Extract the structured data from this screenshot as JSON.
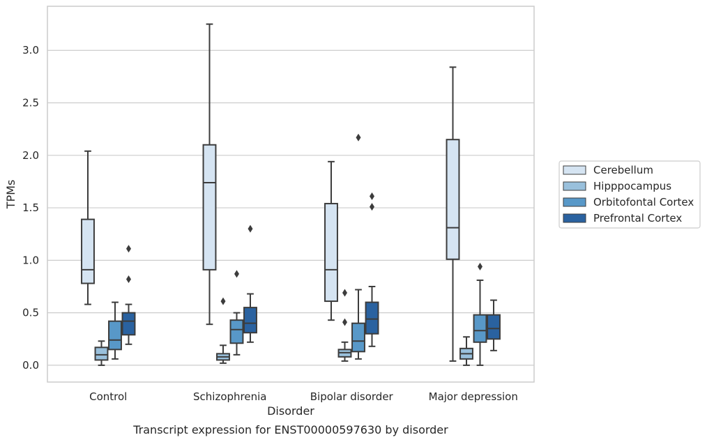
{
  "chart_data": {
    "type": "boxplot",
    "caption": "Transcript expression for ENST00000597630 by disorder",
    "xlabel": "Disorder",
    "ylabel": "TPMs",
    "categories": [
      "Control",
      "Schizophrenia",
      "Bipolar disorder",
      "Major depression"
    ],
    "y_ticks": [
      "0.0",
      "0.5",
      "1.0",
      "1.5",
      "2.0",
      "2.5",
      "3.0"
    ],
    "ylim": [
      -0.16,
      3.42
    ],
    "grid": "horizontal",
    "legend_position": "right",
    "series": [
      {
        "name": "Cerebellum",
        "color": "#d5e4f2",
        "boxes": [
          {
            "min": 0.58,
            "q1": 0.78,
            "median": 0.91,
            "q3": 1.39,
            "max": 2.04,
            "outliers": []
          },
          {
            "min": 0.39,
            "q1": 0.91,
            "median": 1.74,
            "q3": 2.1,
            "max": 3.25,
            "outliers": []
          },
          {
            "min": 0.43,
            "q1": 0.61,
            "median": 0.91,
            "q3": 1.54,
            "max": 1.94,
            "outliers": []
          },
          {
            "min": 0.04,
            "q1": 1.01,
            "median": 1.31,
            "q3": 2.15,
            "max": 2.84,
            "outliers": []
          }
        ]
      },
      {
        "name": "Hipppocampus",
        "color": "#99c0dc",
        "boxes": [
          {
            "min": 0.0,
            "q1": 0.05,
            "median": 0.1,
            "q3": 0.17,
            "max": 0.23,
            "outliers": []
          },
          {
            "min": 0.02,
            "q1": 0.05,
            "median": 0.08,
            "q3": 0.11,
            "max": 0.19,
            "outliers": [
              0.61
            ]
          },
          {
            "min": 0.04,
            "q1": 0.08,
            "median": 0.12,
            "q3": 0.15,
            "max": 0.22,
            "outliers": [
              0.41,
              0.69
            ]
          },
          {
            "min": 0.0,
            "q1": 0.06,
            "median": 0.11,
            "q3": 0.16,
            "max": 0.27,
            "outliers": []
          }
        ]
      },
      {
        "name": "Orbitofontal Cortex",
        "color": "#5898c8",
        "boxes": [
          {
            "min": 0.06,
            "q1": 0.15,
            "median": 0.24,
            "q3": 0.42,
            "max": 0.6,
            "outliers": []
          },
          {
            "min": 0.1,
            "q1": 0.21,
            "median": 0.34,
            "q3": 0.43,
            "max": 0.5,
            "outliers": [
              0.87
            ]
          },
          {
            "min": 0.06,
            "q1": 0.13,
            "median": 0.23,
            "q3": 0.4,
            "max": 0.72,
            "outliers": [
              2.17
            ]
          },
          {
            "min": 0.0,
            "q1": 0.22,
            "median": 0.33,
            "q3": 0.48,
            "max": 0.81,
            "outliers": [
              0.94
            ]
          }
        ]
      },
      {
        "name": "Prefrontal Cortex",
        "color": "#2a62a0",
        "boxes": [
          {
            "min": 0.2,
            "q1": 0.29,
            "median": 0.42,
            "q3": 0.5,
            "max": 0.58,
            "outliers": [
              0.82,
              1.11
            ]
          },
          {
            "min": 0.22,
            "q1": 0.31,
            "median": 0.4,
            "q3": 0.55,
            "max": 0.68,
            "outliers": [
              1.3
            ]
          },
          {
            "min": 0.18,
            "q1": 0.3,
            "median": 0.44,
            "q3": 0.6,
            "max": 0.75,
            "outliers": [
              1.51,
              1.61
            ]
          },
          {
            "min": 0.14,
            "q1": 0.25,
            "median": 0.35,
            "q3": 0.48,
            "max": 0.62,
            "outliers": []
          }
        ]
      }
    ]
  }
}
